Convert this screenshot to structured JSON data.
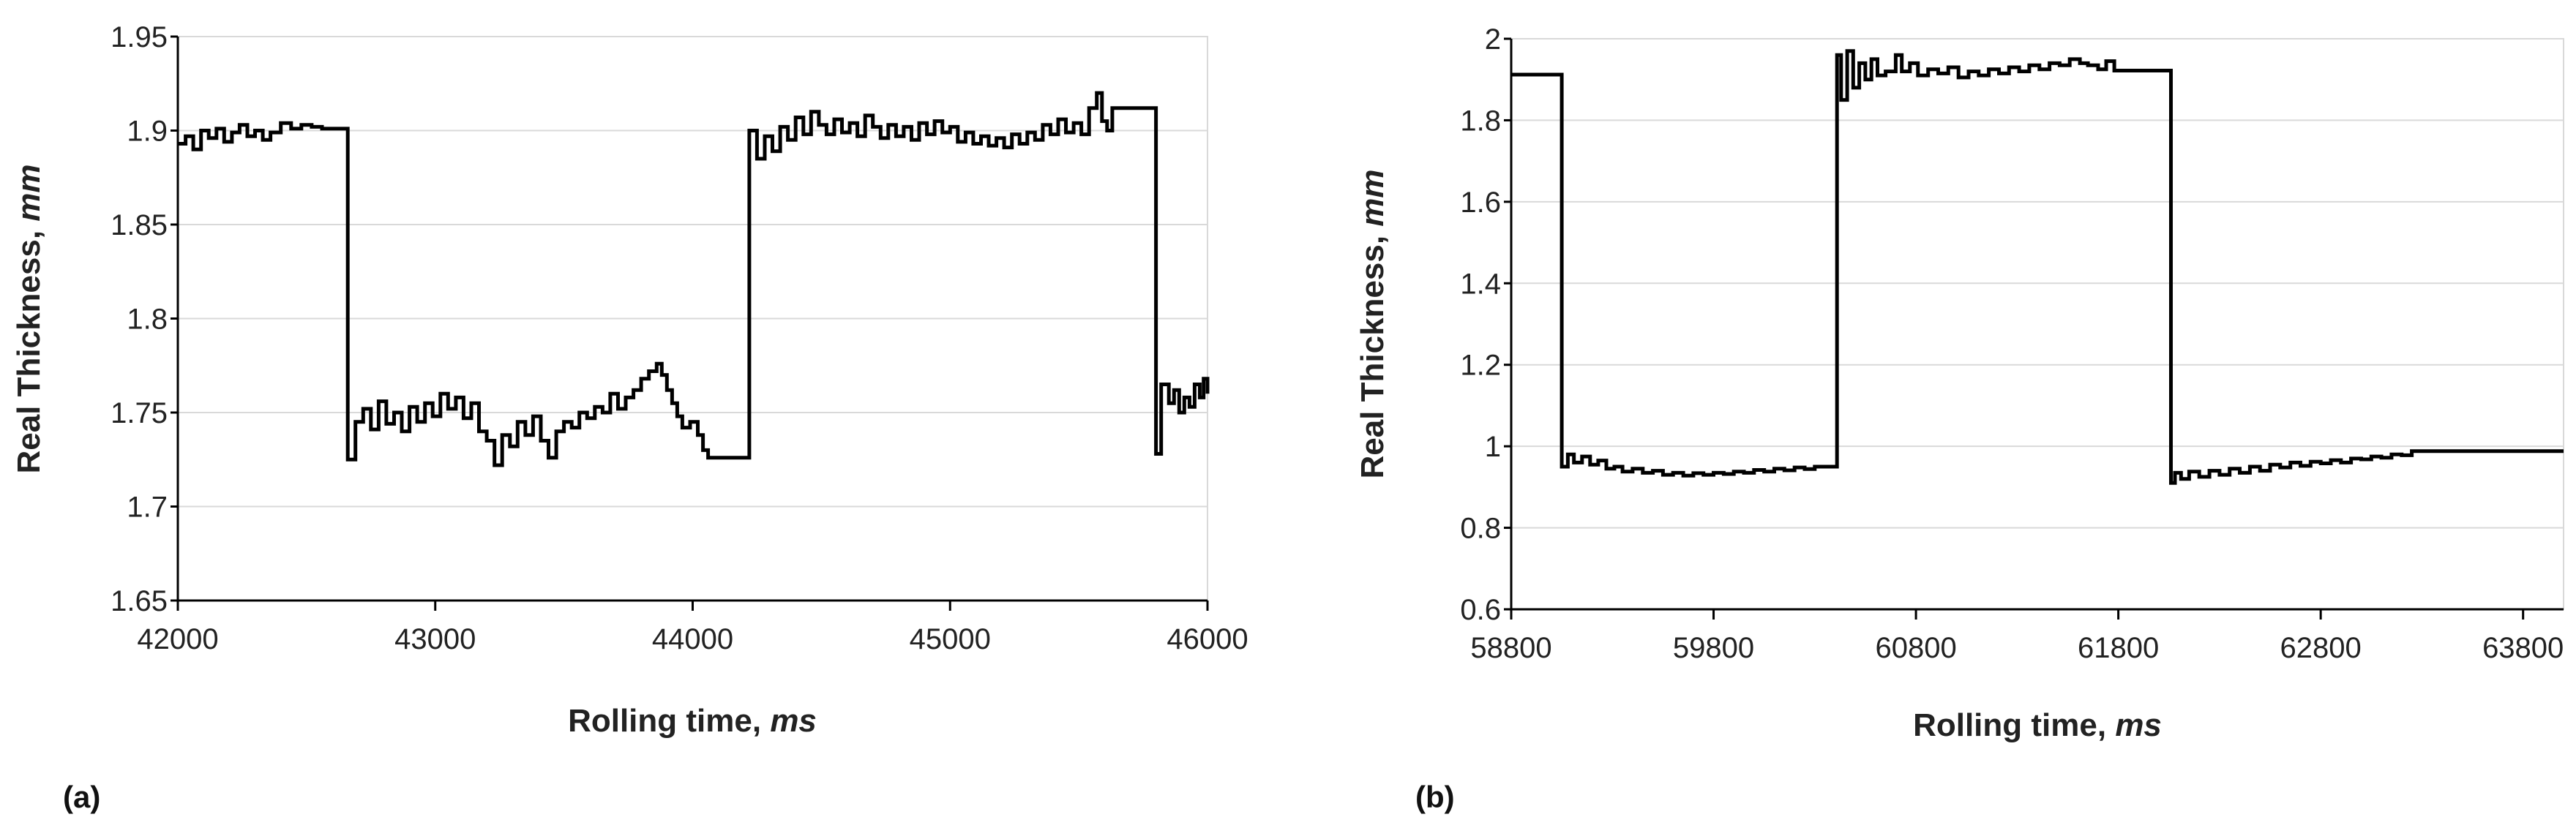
{
  "chart_data": [
    {
      "type": "line",
      "panel_label": "(a)",
      "title": "",
      "xlabel": "Rolling time, ",
      "xlabel_unit": "ms",
      "ylabel": "Real Thickness, ",
      "ylabel_unit": "mm",
      "xlim": [
        42000,
        46000
      ],
      "ylim": [
        1.65,
        1.95
      ],
      "xticks": [
        42000,
        43000,
        44000,
        45000,
        46000
      ],
      "xtick_labels": [
        "42000",
        "43000",
        "44000",
        "45000",
        "46000"
      ],
      "yticks": [
        1.65,
        1.7,
        1.75,
        1.8,
        1.85,
        1.9,
        1.95
      ],
      "ytick_labels": [
        "1.65",
        "1.7",
        "1.75",
        "1.8",
        "1.85",
        "1.9",
        "1.95"
      ],
      "grid": "horizontal",
      "series": [
        {
          "color": "#000000",
          "step": true,
          "points": [
            [
              42000,
              1.893
            ],
            [
              42030,
              1.897
            ],
            [
              42060,
              1.89
            ],
            [
              42090,
              1.9
            ],
            [
              42120,
              1.896
            ],
            [
              42150,
              1.901
            ],
            [
              42180,
              1.894
            ],
            [
              42210,
              1.899
            ],
            [
              42240,
              1.903
            ],
            [
              42270,
              1.897
            ],
            [
              42300,
              1.9
            ],
            [
              42330,
              1.895
            ],
            [
              42360,
              1.899
            ],
            [
              42400,
              1.904
            ],
            [
              42440,
              1.901
            ],
            [
              42480,
              1.903
            ],
            [
              42520,
              1.902
            ],
            [
              42560,
              1.901
            ],
            [
              42600,
              1.901
            ],
            [
              42660,
              1.901
            ],
            [
              42660,
              1.725
            ],
            [
              42690,
              1.745
            ],
            [
              42720,
              1.752
            ],
            [
              42750,
              1.741
            ],
            [
              42780,
              1.756
            ],
            [
              42810,
              1.744
            ],
            [
              42840,
              1.75
            ],
            [
              42870,
              1.74
            ],
            [
              42900,
              1.753
            ],
            [
              42930,
              1.745
            ],
            [
              42960,
              1.755
            ],
            [
              42990,
              1.748
            ],
            [
              43020,
              1.76
            ],
            [
              43050,
              1.752
            ],
            [
              43080,
              1.758
            ],
            [
              43110,
              1.747
            ],
            [
              43140,
              1.755
            ],
            [
              43170,
              1.74
            ],
            [
              43200,
              1.735
            ],
            [
              43230,
              1.722
            ],
            [
              43260,
              1.738
            ],
            [
              43290,
              1.732
            ],
            [
              43320,
              1.745
            ],
            [
              43350,
              1.738
            ],
            [
              43380,
              1.748
            ],
            [
              43410,
              1.735
            ],
            [
              43440,
              1.726
            ],
            [
              43470,
              1.74
            ],
            [
              43500,
              1.745
            ],
            [
              43530,
              1.742
            ],
            [
              43560,
              1.75
            ],
            [
              43590,
              1.747
            ],
            [
              43620,
              1.753
            ],
            [
              43650,
              1.75
            ],
            [
              43680,
              1.76
            ],
            [
              43710,
              1.752
            ],
            [
              43740,
              1.758
            ],
            [
              43770,
              1.762
            ],
            [
              43800,
              1.768
            ],
            [
              43830,
              1.772
            ],
            [
              43860,
              1.776
            ],
            [
              43880,
              1.77
            ],
            [
              43900,
              1.762
            ],
            [
              43920,
              1.755
            ],
            [
              43940,
              1.748
            ],
            [
              43960,
              1.742
            ],
            [
              43990,
              1.745
            ],
            [
              44020,
              1.738
            ],
            [
              44040,
              1.73
            ],
            [
              44060,
              1.726
            ],
            [
              44220,
              1.726
            ],
            [
              44220,
              1.9
            ],
            [
              44250,
              1.885
            ],
            [
              44280,
              1.897
            ],
            [
              44310,
              1.889
            ],
            [
              44340,
              1.902
            ],
            [
              44370,
              1.895
            ],
            [
              44400,
              1.907
            ],
            [
              44430,
              1.898
            ],
            [
              44460,
              1.91
            ],
            [
              44490,
              1.903
            ],
            [
              44520,
              1.898
            ],
            [
              44550,
              1.906
            ],
            [
              44580,
              1.899
            ],
            [
              44610,
              1.904
            ],
            [
              44640,
              1.897
            ],
            [
              44670,
              1.908
            ],
            [
              44700,
              1.902
            ],
            [
              44730,
              1.896
            ],
            [
              44760,
              1.903
            ],
            [
              44790,
              1.897
            ],
            [
              44820,
              1.902
            ],
            [
              44850,
              1.895
            ],
            [
              44880,
              1.904
            ],
            [
              44910,
              1.898
            ],
            [
              44940,
              1.905
            ],
            [
              44970,
              1.899
            ],
            [
              45000,
              1.902
            ],
            [
              45030,
              1.894
            ],
            [
              45060,
              1.899
            ],
            [
              45090,
              1.893
            ],
            [
              45120,
              1.897
            ],
            [
              45150,
              1.892
            ],
            [
              45180,
              1.896
            ],
            [
              45210,
              1.891
            ],
            [
              45240,
              1.898
            ],
            [
              45270,
              1.893
            ],
            [
              45300,
              1.899
            ],
            [
              45330,
              1.895
            ],
            [
              45360,
              1.903
            ],
            [
              45390,
              1.898
            ],
            [
              45420,
              1.906
            ],
            [
              45450,
              1.899
            ],
            [
              45480,
              1.904
            ],
            [
              45510,
              1.898
            ],
            [
              45540,
              1.912
            ],
            [
              45570,
              1.92
            ],
            [
              45590,
              1.905
            ],
            [
              45610,
              1.9
            ],
            [
              45630,
              1.912
            ],
            [
              45800,
              1.912
            ],
            [
              45800,
              1.728
            ],
            [
              45820,
              1.765
            ],
            [
              45850,
              1.755
            ],
            [
              45870,
              1.762
            ],
            [
              45890,
              1.75
            ],
            [
              45910,
              1.758
            ],
            [
              45930,
              1.753
            ],
            [
              45950,
              1.765
            ],
            [
              45970,
              1.758
            ],
            [
              45985,
              1.768
            ],
            [
              46000,
              1.76
            ]
          ]
        }
      ]
    },
    {
      "type": "line",
      "panel_label": "(b)",
      "title": "",
      "xlabel": "Rolling time, ",
      "xlabel_unit": "ms",
      "ylabel": "Real Thickness, ",
      "ylabel_unit": "mm",
      "xlim": [
        58800,
        64000
      ],
      "ylim": [
        0.6,
        2.0
      ],
      "xticks": [
        58800,
        59800,
        60800,
        61800,
        62800,
        63800
      ],
      "xtick_labels": [
        "58800",
        "59800",
        "60800",
        "61800",
        "62800",
        "63800"
      ],
      "yticks": [
        0.6,
        0.8,
        1.0,
        1.2,
        1.4,
        1.6,
        1.8,
        2.0
      ],
      "ytick_labels": [
        "0.6",
        "0.8",
        "1",
        "1.2",
        "1.4",
        "1.6",
        "1.8",
        "2"
      ],
      "grid": "horizontal",
      "series": [
        {
          "color": "#000000",
          "step": true,
          "points": [
            [
              58800,
              1.912
            ],
            [
              59050,
              1.912
            ],
            [
              59050,
              0.95
            ],
            [
              59080,
              0.98
            ],
            [
              59110,
              0.96
            ],
            [
              59150,
              0.975
            ],
            [
              59190,
              0.955
            ],
            [
              59230,
              0.965
            ],
            [
              59270,
              0.945
            ],
            [
              59310,
              0.95
            ],
            [
              59350,
              0.938
            ],
            [
              59400,
              0.945
            ],
            [
              59450,
              0.935
            ],
            [
              59500,
              0.94
            ],
            [
              59550,
              0.93
            ],
            [
              59600,
              0.935
            ],
            [
              59650,
              0.928
            ],
            [
              59700,
              0.934
            ],
            [
              59750,
              0.93
            ],
            [
              59800,
              0.935
            ],
            [
              59850,
              0.932
            ],
            [
              59900,
              0.938
            ],
            [
              59950,
              0.935
            ],
            [
              60000,
              0.942
            ],
            [
              60050,
              0.938
            ],
            [
              60100,
              0.945
            ],
            [
              60150,
              0.941
            ],
            [
              60200,
              0.948
            ],
            [
              60250,
              0.944
            ],
            [
              60300,
              0.95
            ],
            [
              60400,
              0.95
            ],
            [
              60410,
              0.95
            ],
            [
              60410,
              1.96
            ],
            [
              60430,
              1.85
            ],
            [
              60460,
              1.97
            ],
            [
              60490,
              1.88
            ],
            [
              60520,
              1.94
            ],
            [
              60550,
              1.9
            ],
            [
              60580,
              1.95
            ],
            [
              60610,
              1.91
            ],
            [
              60650,
              1.92
            ],
            [
              60700,
              1.96
            ],
            [
              60730,
              1.92
            ],
            [
              60770,
              1.94
            ],
            [
              60810,
              1.91
            ],
            [
              60860,
              1.925
            ],
            [
              60910,
              1.915
            ],
            [
              60960,
              1.93
            ],
            [
              61010,
              1.905
            ],
            [
              61060,
              1.92
            ],
            [
              61110,
              1.91
            ],
            [
              61160,
              1.925
            ],
            [
              61210,
              1.915
            ],
            [
              61260,
              1.93
            ],
            [
              61310,
              1.92
            ],
            [
              61360,
              1.935
            ],
            [
              61410,
              1.925
            ],
            [
              61460,
              1.94
            ],
            [
              61510,
              1.935
            ],
            [
              61560,
              1.95
            ],
            [
              61610,
              1.94
            ],
            [
              61650,
              1.935
            ],
            [
              61700,
              1.925
            ],
            [
              61740,
              1.945
            ],
            [
              61780,
              1.922
            ],
            [
              62060,
              1.922
            ],
            [
              62060,
              0.91
            ],
            [
              62080,
              0.935
            ],
            [
              62110,
              0.92
            ],
            [
              62150,
              0.938
            ],
            [
              62200,
              0.925
            ],
            [
              62250,
              0.94
            ],
            [
              62300,
              0.93
            ],
            [
              62350,
              0.945
            ],
            [
              62400,
              0.935
            ],
            [
              62450,
              0.95
            ],
            [
              62500,
              0.94
            ],
            [
              62550,
              0.955
            ],
            [
              62600,
              0.948
            ],
            [
              62650,
              0.96
            ],
            [
              62700,
              0.952
            ],
            [
              62750,
              0.962
            ],
            [
              62800,
              0.958
            ],
            [
              62850,
              0.966
            ],
            [
              62900,
              0.96
            ],
            [
              62950,
              0.97
            ],
            [
              63000,
              0.968
            ],
            [
              63050,
              0.975
            ],
            [
              63100,
              0.972
            ],
            [
              63150,
              0.98
            ],
            [
              63200,
              0.978
            ],
            [
              63250,
              0.988
            ],
            [
              64000,
              0.988
            ]
          ]
        }
      ]
    }
  ]
}
